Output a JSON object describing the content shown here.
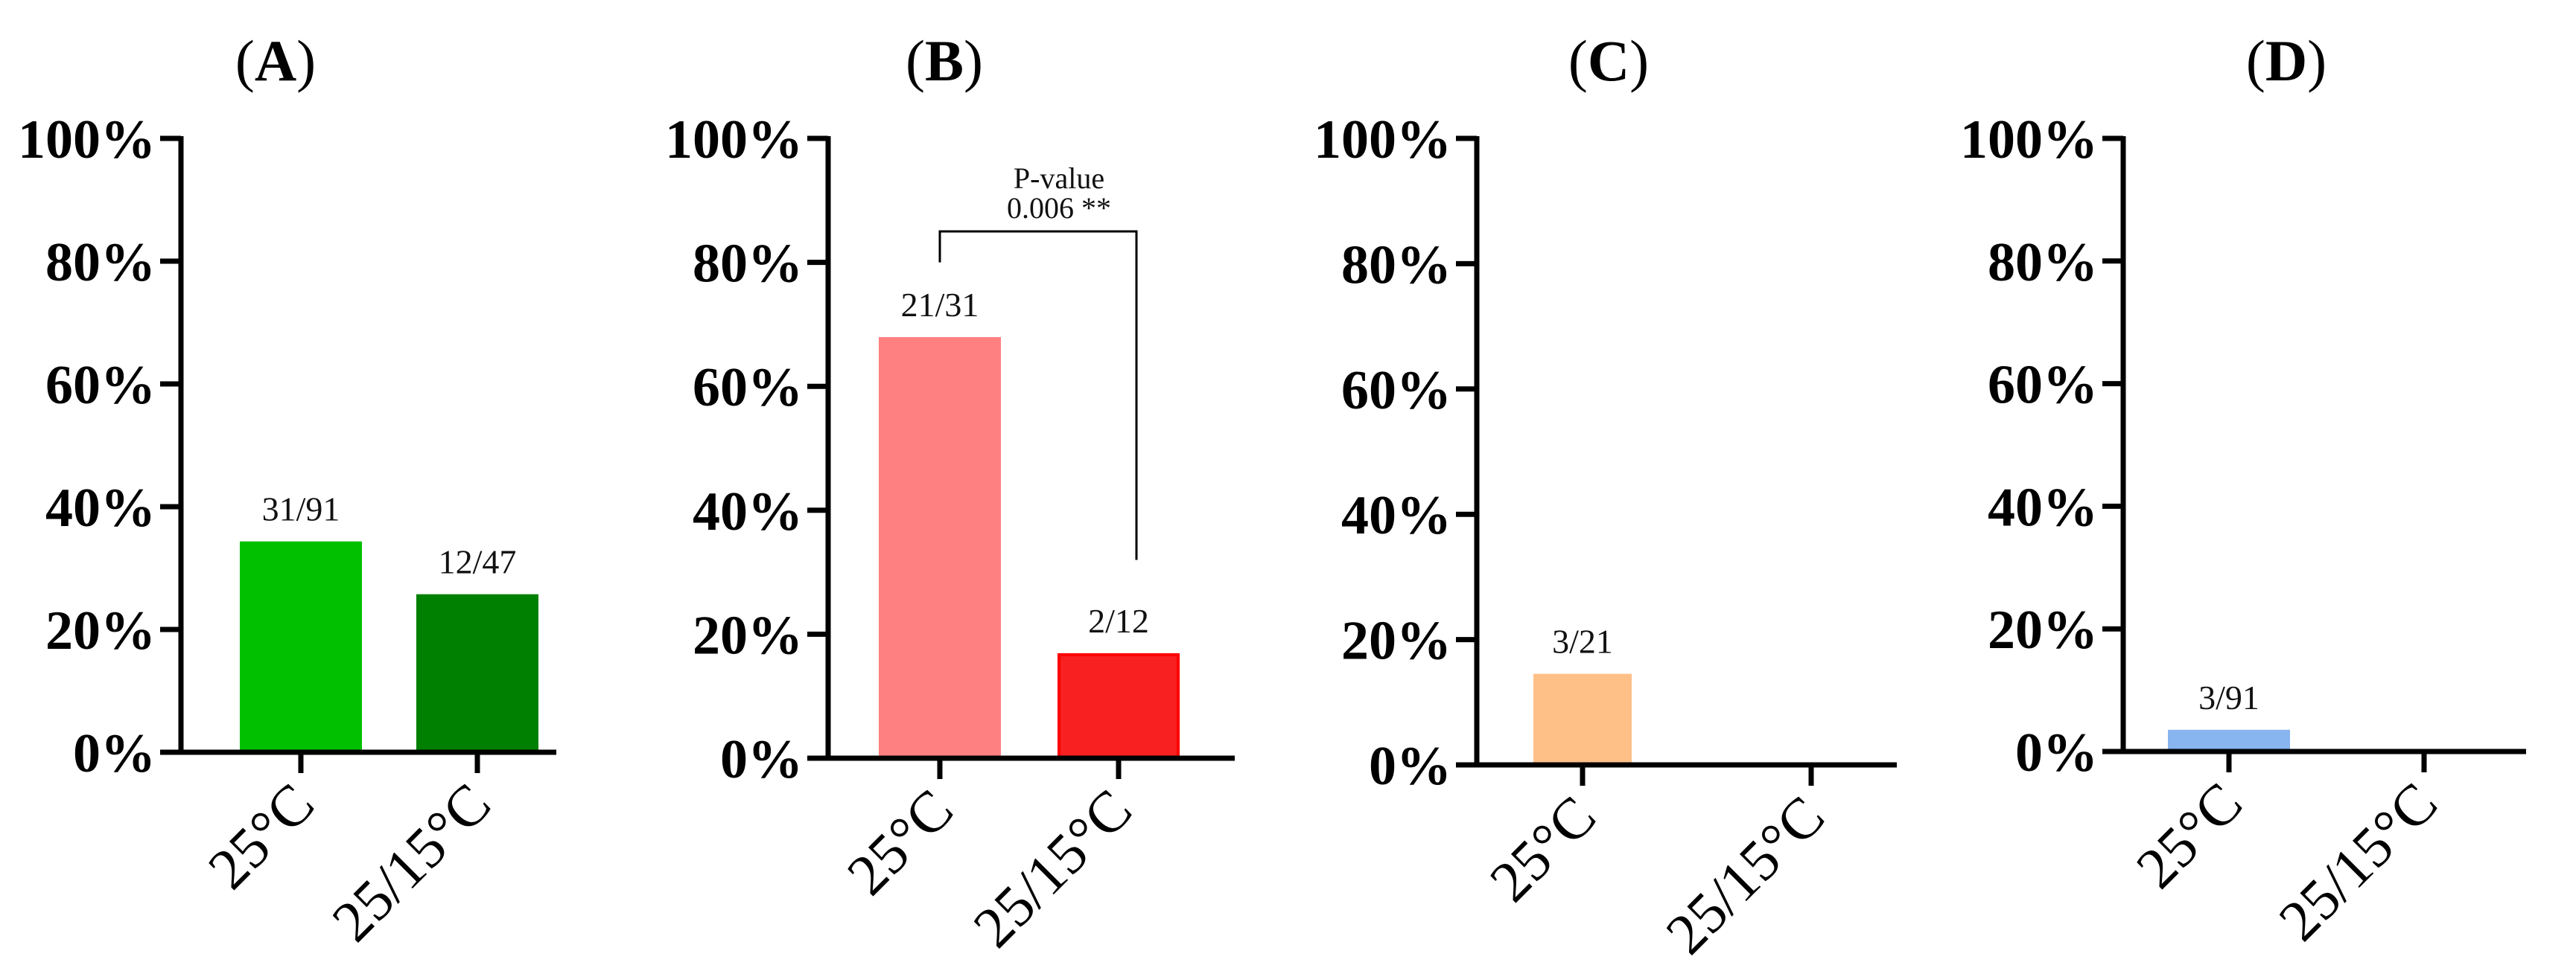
{
  "chart_data": [
    {
      "type": "bar",
      "title": "(A)",
      "title_letter": "A",
      "categories": [
        "25°C",
        "25/15°C"
      ],
      "values": [
        34.1,
        25.5
      ],
      "data_labels": [
        "31/91",
        "12/47"
      ],
      "colors": [
        "#00c000",
        "#008000"
      ],
      "edge_colors": [
        "#00c000",
        "#008000"
      ],
      "ylim": [
        0,
        100
      ],
      "yticks": [
        0,
        20,
        40,
        60,
        80,
        100
      ],
      "ytick_labels": [
        "0%",
        "20%",
        "40%",
        "60%",
        "80%",
        "100%"
      ]
    },
    {
      "type": "bar",
      "title": "(B)",
      "title_letter": "B",
      "categories": [
        "25°C",
        "25/15°C"
      ],
      "values": [
        67.7,
        16.7
      ],
      "data_labels": [
        "21/31",
        "2/12"
      ],
      "colors": [
        "#ff8080",
        "#f82020"
      ],
      "edge_colors": [
        "#ff8080",
        "#ff0000"
      ],
      "ylim": [
        0,
        100
      ],
      "yticks": [
        0,
        20,
        40,
        60,
        80,
        100
      ],
      "ytick_labels": [
        "0%",
        "20%",
        "40%",
        "60%",
        "80%",
        "100%"
      ],
      "annotation": {
        "line1": "P-value",
        "line2": "0.006 **",
        "bracket_top": 85,
        "left_bottom": 80,
        "right_bottom": 32
      }
    },
    {
      "type": "bar",
      "title": "(C)",
      "title_letter": "C",
      "categories": [
        "25°C",
        "25/15°C"
      ],
      "values": [
        14.3,
        0
      ],
      "data_labels": [
        "3/21",
        ""
      ],
      "colors": [
        "#ffc088",
        "#ffc088"
      ],
      "edge_colors": [
        "#ffc088",
        "#ffc088"
      ],
      "ylim": [
        0,
        100
      ],
      "yticks": [
        0,
        20,
        40,
        60,
        80,
        100
      ],
      "ytick_labels": [
        "0%",
        "20%",
        "40%",
        "60%",
        "80%",
        "100%"
      ]
    },
    {
      "type": "bar",
      "title": "(D)",
      "title_letter": "D",
      "categories": [
        "25°C",
        "25/15°C"
      ],
      "values": [
        3.3,
        0
      ],
      "data_labels": [
        "3/91",
        ""
      ],
      "colors": [
        "#88b4f0",
        "#88b4f0"
      ],
      "edge_colors": [
        "#88b4f0",
        "#88b4f0"
      ],
      "ylim": [
        0,
        100
      ],
      "yticks": [
        0,
        20,
        40,
        60,
        80,
        100
      ],
      "ytick_labels": [
        "0%",
        "20%",
        "40%",
        "60%",
        "80%",
        "100%"
      ]
    }
  ]
}
